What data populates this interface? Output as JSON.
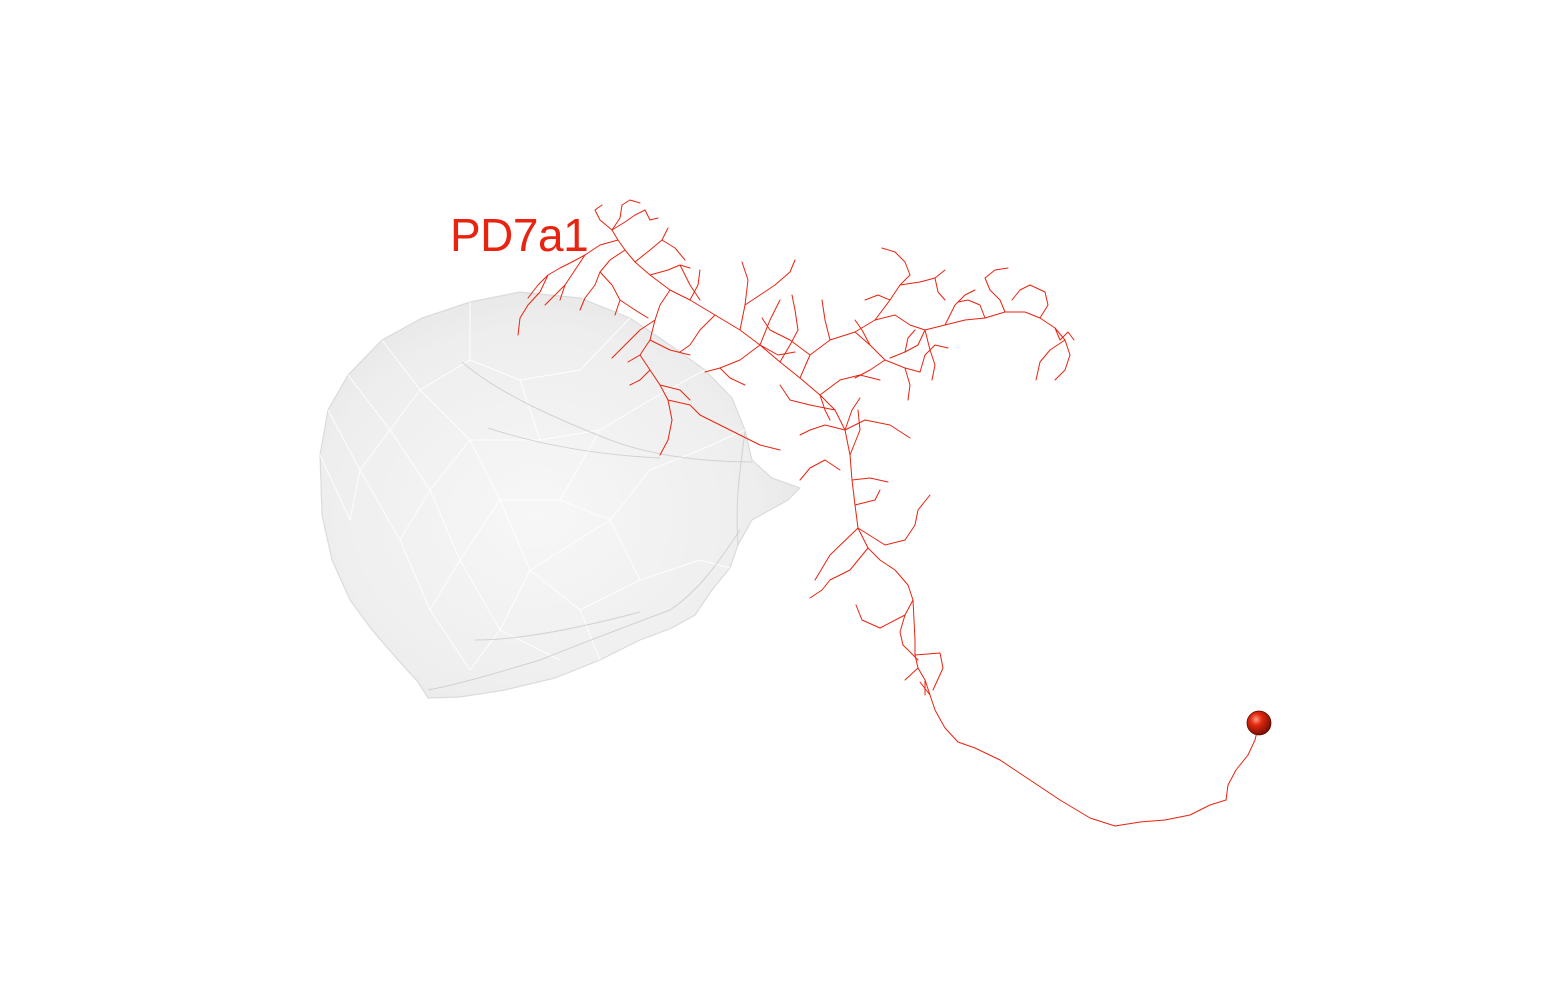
{
  "neuron": {
    "label": "PD7a1",
    "color": "#e8230f"
  },
  "soma": {
    "color": "#c41a08"
  },
  "mesh": {
    "fill": "#eeeeee",
    "edge": "#d0d0d0"
  },
  "background": "#ffffff"
}
